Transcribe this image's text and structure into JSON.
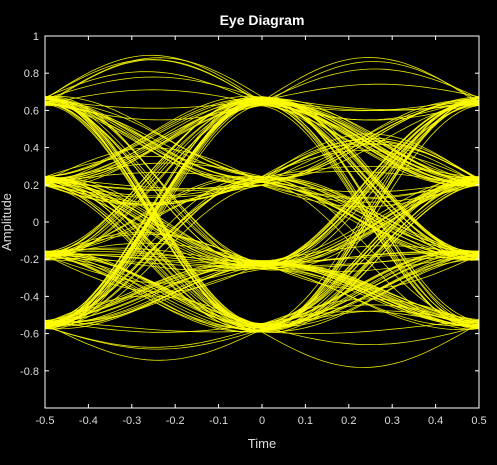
{
  "chart_data": {
    "type": "line",
    "title": "Eye Diagram",
    "xlabel": "Time",
    "ylabel": "Amplitude",
    "xlim": [
      -0.5,
      0.5
    ],
    "ylim": [
      -1,
      1
    ],
    "x_ticks": [
      "-0.5",
      "-0.4",
      "-0.3",
      "-0.2",
      "-0.1",
      "0",
      "0.1",
      "0.2",
      "0.3",
      "0.4",
      "0.5"
    ],
    "y_ticks": [
      "1",
      "0.8",
      "0.6",
      "0.4",
      "0.2",
      "0",
      "-0.2",
      "-0.4",
      "-0.6",
      "-0.8"
    ],
    "symbol_levels": [
      -0.55,
      -0.18,
      0.22,
      0.65
    ],
    "center_crossing_levels": [
      -0.57,
      -0.23,
      0.22,
      0.65
    ],
    "trace_peak_max": 0.92,
    "trace_trough_min": -0.8,
    "grid": false,
    "colors": {
      "background": "#000000",
      "axes_background": "#000000",
      "axes": "#ffffff",
      "trace": "#ffff00",
      "text": "#dcdcdc"
    }
  }
}
